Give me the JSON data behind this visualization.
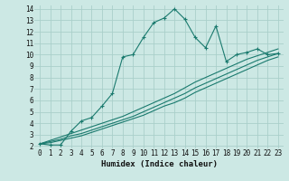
{
  "xlabel": "Humidex (Indice chaleur)",
  "background_color": "#cce8e4",
  "grid_color": "#aacfca",
  "line_color": "#1a7a6e",
  "xlim": [
    -0.5,
    23.5
  ],
  "ylim": [
    1.8,
    14.3
  ],
  "xticks": [
    0,
    1,
    2,
    3,
    4,
    5,
    6,
    7,
    8,
    9,
    10,
    11,
    12,
    13,
    14,
    15,
    16,
    17,
    18,
    19,
    20,
    21,
    22,
    23
  ],
  "yticks": [
    2,
    3,
    4,
    5,
    6,
    7,
    8,
    9,
    10,
    11,
    12,
    13,
    14
  ],
  "series1_x": [
    0,
    1,
    2,
    3,
    4,
    5,
    6,
    7,
    8,
    9,
    10,
    11,
    12,
    13,
    14,
    15,
    16,
    17,
    18,
    19,
    20,
    21,
    22,
    23
  ],
  "series1_y": [
    2.2,
    2.1,
    2.1,
    3.3,
    4.2,
    4.5,
    5.5,
    6.6,
    9.8,
    10.0,
    11.5,
    12.8,
    13.2,
    14.0,
    13.1,
    11.5,
    10.6,
    12.5,
    9.4,
    10.0,
    10.2,
    10.5,
    10.0,
    10.1
  ],
  "series2_x": [
    0,
    1,
    2,
    3,
    4,
    5,
    6,
    7,
    8,
    9,
    10,
    11,
    12,
    13,
    14,
    15,
    16,
    17,
    18,
    19,
    20,
    21,
    22,
    23
  ],
  "series2_y": [
    2.2,
    2.4,
    2.6,
    2.9,
    3.1,
    3.4,
    3.7,
    4.0,
    4.3,
    4.6,
    5.0,
    5.4,
    5.8,
    6.2,
    6.6,
    7.1,
    7.5,
    7.9,
    8.3,
    8.7,
    9.1,
    9.5,
    9.8,
    10.1
  ],
  "series3_x": [
    0,
    1,
    2,
    3,
    4,
    5,
    6,
    7,
    8,
    9,
    10,
    11,
    12,
    13,
    14,
    15,
    16,
    17,
    18,
    19,
    20,
    21,
    22,
    23
  ],
  "series3_y": [
    2.2,
    2.5,
    2.8,
    3.1,
    3.4,
    3.7,
    4.0,
    4.3,
    4.6,
    5.0,
    5.4,
    5.8,
    6.2,
    6.6,
    7.1,
    7.6,
    8.0,
    8.4,
    8.8,
    9.2,
    9.6,
    9.9,
    10.2,
    10.5
  ],
  "series4_x": [
    0,
    1,
    2,
    3,
    4,
    5,
    6,
    7,
    8,
    9,
    10,
    11,
    12,
    13,
    14,
    15,
    16,
    17,
    18,
    19,
    20,
    21,
    22,
    23
  ],
  "series4_y": [
    2.2,
    2.3,
    2.5,
    2.7,
    2.9,
    3.2,
    3.5,
    3.8,
    4.1,
    4.4,
    4.7,
    5.1,
    5.5,
    5.8,
    6.2,
    6.7,
    7.1,
    7.5,
    7.9,
    8.3,
    8.7,
    9.1,
    9.5,
    9.8
  ]
}
